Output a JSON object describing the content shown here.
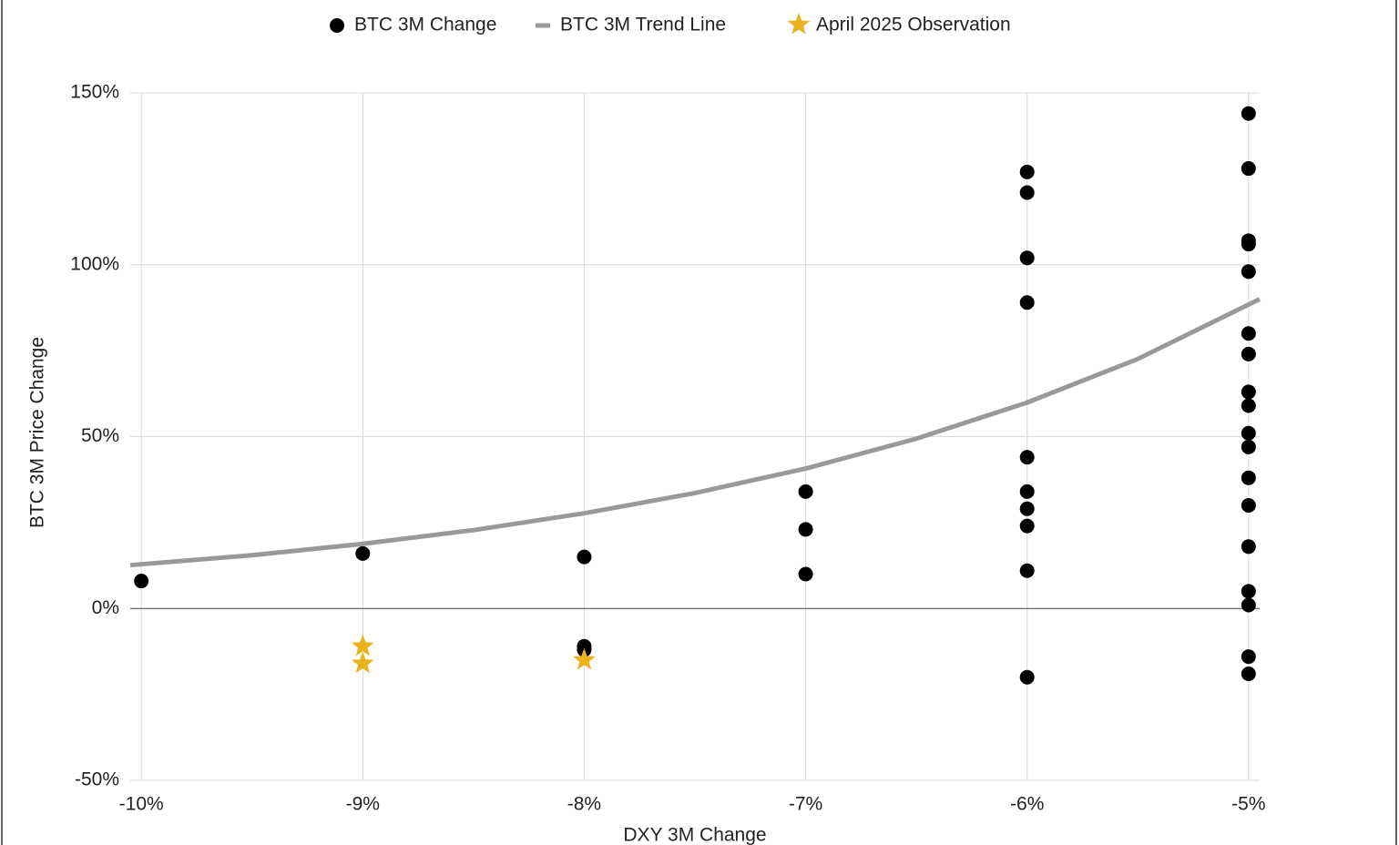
{
  "chart_data": {
    "type": "scatter",
    "x_label": "DXY 3M Change",
    "y_label": "BTC 3M Price Change",
    "xlim": [
      -10.05,
      -4.95
    ],
    "ylim": [
      -50,
      150
    ],
    "xticks": [
      {
        "value": -10,
        "label": "-10%"
      },
      {
        "value": -9,
        "label": "-9%"
      },
      {
        "value": -8,
        "label": "-8%"
      },
      {
        "value": -7,
        "label": "-7%"
      },
      {
        "value": -6,
        "label": "-6%"
      },
      {
        "value": -5,
        "label": "-5%"
      }
    ],
    "yticks": [
      {
        "value": -50,
        "label": "-50%"
      },
      {
        "value": 0,
        "label": "0%"
      },
      {
        "value": 50,
        "label": "50%"
      },
      {
        "value": 100,
        "label": "100%"
      },
      {
        "value": 150,
        "label": "150%"
      }
    ],
    "grid": true,
    "legend": "top",
    "series": [
      {
        "name": "BTC 3M Change",
        "type": "scatter",
        "marker": "circle",
        "color": "#000000",
        "x": [
          -10,
          -9,
          -8,
          -8,
          -8,
          -7,
          -7,
          -7,
          -6,
          -6,
          -6,
          -6,
          -6,
          -6,
          -6,
          -6,
          -6,
          -6,
          -5,
          -5,
          -5,
          -5,
          -5,
          -5,
          -5,
          -5,
          -5,
          -5,
          -5,
          -5,
          -5,
          -5,
          -5,
          -5,
          -5,
          -5
        ],
        "values": [
          8,
          16,
          15,
          -11,
          -12,
          34,
          23,
          10,
          127,
          121,
          102,
          89,
          44,
          34,
          29,
          24,
          11,
          -20,
          144,
          128,
          107,
          106,
          98,
          80,
          74,
          63,
          59,
          51,
          47,
          38,
          30,
          18,
          5,
          1,
          -14,
          -19
        ]
      },
      {
        "name": "BTC 3M Trend Line",
        "type": "line",
        "color": "#999999",
        "x": [
          -10.05,
          -9.5,
          -9,
          -8.5,
          -8,
          -7.5,
          -7,
          -6.5,
          -6,
          -5.5,
          -4.95
        ],
        "values": [
          12.6,
          15.5,
          18.8,
          22.8,
          27.7,
          33.6,
          40.7,
          49.4,
          59.9,
          72.6,
          90
        ]
      },
      {
        "name": "April 2025 Observation",
        "type": "scatter",
        "marker": "star",
        "color": "#e8b31c",
        "x": [
          -9,
          -9,
          -8
        ],
        "values": [
          -11,
          -16,
          -15
        ]
      }
    ]
  }
}
